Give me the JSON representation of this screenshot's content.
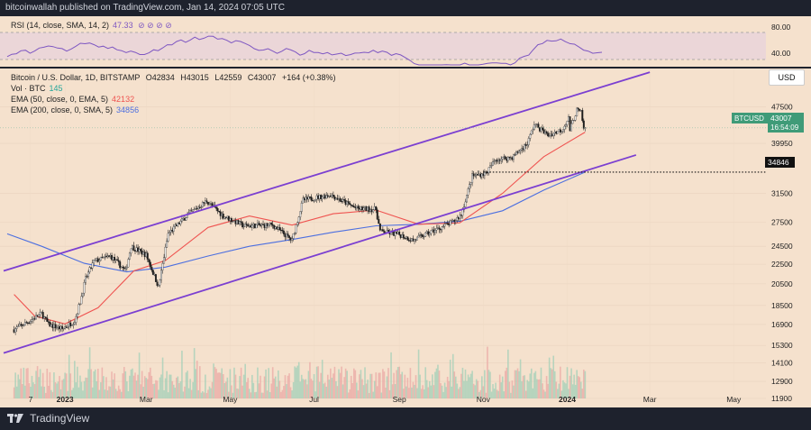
{
  "header": {
    "text": "bitcoinwallah published on TradingView.com, Jan 14, 2024 07:05 UTC"
  },
  "rsi": {
    "label": "RSI (14, close, SMA, 14, 2)",
    "value": "47.33",
    "ticks": [
      "80.00",
      "40.00"
    ]
  },
  "main_legend": {
    "title": "Bitcoin / U.S. Dollar, 1D, BITSTAMP",
    "open": "O42834",
    "high": "H43015",
    "low": "L42559",
    "close": "C43007",
    "change": "+164 (+0.38%)",
    "vol_label": "Vol · BTC",
    "vol_value": "145",
    "ema50_label": "EMA (50, close, 0, EMA, 5)",
    "ema50_value": "42132",
    "ema200_label": "EMA (200, close, 0, SMA, 5)",
    "ema200_value": "34856"
  },
  "price_scale": {
    "currency": "USD"
  },
  "price_tag": {
    "symbol": "BTCUSD",
    "price": "43007",
    "countdown": "16:54:09"
  },
  "level_tag": {
    "price": "34846"
  },
  "footer": {
    "brand": "TradingView"
  },
  "colors": {
    "bg": "#f5e1cd",
    "up": "#26a69a",
    "down": "#1c1c1c",
    "ema50": "#ef5350",
    "ema200": "#4c6fe0",
    "channel": "#7b3fd1",
    "rsi": "#7e57c2"
  },
  "chart_data": {
    "type": "candlestick",
    "y_scale": "log",
    "ylim": [
      11300,
      57000
    ],
    "y_ticks": [
      11900,
      12900,
      14100,
      15300,
      16900,
      18500,
      20500,
      22500,
      24500,
      27500,
      31500,
      34846,
      39950,
      43007,
      47500
    ],
    "x_labels": [
      "7",
      "2023",
      "Mar",
      "May",
      "Jul",
      "Sep",
      "Nov",
      "2024",
      "Mar",
      "May"
    ],
    "close_path": [
      {
        "t": "2022-11-25",
        "p": 16500
      },
      {
        "t": "2022-12-05",
        "p": 17100
      },
      {
        "t": "2022-12-15",
        "p": 17800
      },
      {
        "t": "2022-12-20",
        "p": 16900
      },
      {
        "t": "2022-12-30",
        "p": 16550
      },
      {
        "t": "2023-01-08",
        "p": 17200
      },
      {
        "t": "2023-01-12",
        "p": 18800
      },
      {
        "t": "2023-01-16",
        "p": 21000
      },
      {
        "t": "2023-01-22",
        "p": 22800
      },
      {
        "t": "2023-02-03",
        "p": 23400
      },
      {
        "t": "2023-02-14",
        "p": 21800
      },
      {
        "t": "2023-02-18",
        "p": 24500
      },
      {
        "t": "2023-03-01",
        "p": 23500
      },
      {
        "t": "2023-03-10",
        "p": 20200
      },
      {
        "t": "2023-03-17",
        "p": 26000
      },
      {
        "t": "2023-03-31",
        "p": 28400
      },
      {
        "t": "2023-04-14",
        "p": 30400
      },
      {
        "t": "2023-04-26",
        "p": 28300
      },
      {
        "t": "2023-05-11",
        "p": 27000
      },
      {
        "t": "2023-06-01",
        "p": 27100
      },
      {
        "t": "2023-06-15",
        "p": 25200
      },
      {
        "t": "2023-06-23",
        "p": 30500
      },
      {
        "t": "2023-07-13",
        "p": 31300
      },
      {
        "t": "2023-08-01",
        "p": 29300
      },
      {
        "t": "2023-08-15",
        "p": 29200
      },
      {
        "t": "2023-08-18",
        "p": 26300
      },
      {
        "t": "2023-09-01",
        "p": 25900
      },
      {
        "t": "2023-09-11",
        "p": 25200
      },
      {
        "t": "2023-09-25",
        "p": 26300
      },
      {
        "t": "2023-10-10",
        "p": 27500
      },
      {
        "t": "2023-10-16",
        "p": 28500
      },
      {
        "t": "2023-10-24",
        "p": 34200
      },
      {
        "t": "2023-11-03",
        "p": 34700
      },
      {
        "t": "2023-11-10",
        "p": 37000
      },
      {
        "t": "2023-11-22",
        "p": 37400
      },
      {
        "t": "2023-12-03",
        "p": 39900
      },
      {
        "t": "2023-12-08",
        "p": 43800
      },
      {
        "t": "2023-12-18",
        "p": 41500
      },
      {
        "t": "2023-12-28",
        "p": 42600
      },
      {
        "t": "2024-01-02",
        "p": 45000
      },
      {
        "t": "2024-01-03",
        "p": 42600
      },
      {
        "t": "2024-01-08",
        "p": 46800
      },
      {
        "t": "2024-01-11",
        "p": 46200
      },
      {
        "t": "2024-01-13",
        "p": 42800
      },
      {
        "t": "2024-01-14",
        "p": 43007
      }
    ],
    "ema50": [
      {
        "t": "2022-11-25",
        "p": 19500
      },
      {
        "t": "2022-12-10",
        "p": 17600
      },
      {
        "t": "2023-01-01",
        "p": 16950
      },
      {
        "t": "2023-01-25",
        "p": 18300
      },
      {
        "t": "2023-02-20",
        "p": 21800
      },
      {
        "t": "2023-03-15",
        "p": 22900
      },
      {
        "t": "2023-04-15",
        "p": 26800
      },
      {
        "t": "2023-05-15",
        "p": 28300
      },
      {
        "t": "2023-06-15",
        "p": 27100
      },
      {
        "t": "2023-07-15",
        "p": 28600
      },
      {
        "t": "2023-08-15",
        "p": 29100
      },
      {
        "t": "2023-09-15",
        "p": 27200
      },
      {
        "t": "2023-10-15",
        "p": 27400
      },
      {
        "t": "2023-11-15",
        "p": 31500
      },
      {
        "t": "2023-12-15",
        "p": 37500
      },
      {
        "t": "2024-01-14",
        "p": 42132
      }
    ],
    "ema200": [
      {
        "t": "2022-11-20",
        "p": 26000
      },
      {
        "t": "2022-12-15",
        "p": 24500
      },
      {
        "t": "2023-01-15",
        "p": 22600
      },
      {
        "t": "2023-02-15",
        "p": 21700
      },
      {
        "t": "2023-03-15",
        "p": 22200
      },
      {
        "t": "2023-04-15",
        "p": 23400
      },
      {
        "t": "2023-05-15",
        "p": 24500
      },
      {
        "t": "2023-06-15",
        "p": 25300
      },
      {
        "t": "2023-07-15",
        "p": 26200
      },
      {
        "t": "2023-08-15",
        "p": 27000
      },
      {
        "t": "2023-09-15",
        "p": 27200
      },
      {
        "t": "2023-10-15",
        "p": 27600
      },
      {
        "t": "2023-11-15",
        "p": 29000
      },
      {
        "t": "2023-12-15",
        "p": 32000
      },
      {
        "t": "2024-01-14",
        "p": 34856
      }
    ],
    "channel_upper": [
      {
        "t": "2022-11-22",
        "p": 22000
      },
      {
        "t": "2024-03-01",
        "p": 56000
      }
    ],
    "channel_lower": [
      {
        "t": "2022-11-22",
        "p": 14900
      },
      {
        "t": "2024-02-20",
        "p": 37800
      }
    ]
  }
}
